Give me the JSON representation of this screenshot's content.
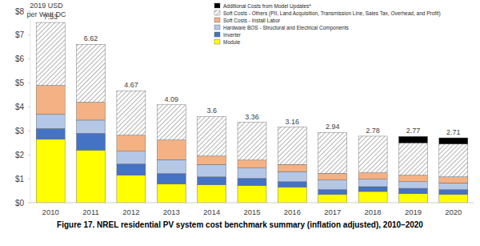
{
  "chart_data": {
    "type": "bar",
    "stacked": true,
    "title": "Figure 17. NREL residential PV system cost benchmark summary (inflation adjusted), 2010–2020",
    "y_label": "2019 USD per Watt DC",
    "categories": [
      "2010",
      "2011",
      "2012",
      "2013",
      "2014",
      "2015",
      "2016",
      "2017",
      "2018",
      "2019",
      "2020"
    ],
    "series": [
      {
        "name": "Module",
        "color": "#ffff00",
        "values": [
          2.65,
          2.2,
          1.15,
          0.78,
          0.75,
          0.72,
          0.65,
          0.35,
          0.47,
          0.38,
          0.35
        ]
      },
      {
        "name": "Inverter",
        "color": "#4472c4",
        "values": [
          0.45,
          0.7,
          0.47,
          0.44,
          0.33,
          0.3,
          0.23,
          0.2,
          0.2,
          0.22,
          0.2
        ]
      },
      {
        "name": "Hardware BOS - Structural and Electrical Components",
        "color": "#b4c7e7",
        "values": [
          0.6,
          0.55,
          0.53,
          0.58,
          0.52,
          0.43,
          0.42,
          0.4,
          0.31,
          0.28,
          0.28
        ]
      },
      {
        "name": "Soft Costs - Install Labor",
        "color": "#f4b183",
        "values": [
          1.2,
          0.75,
          0.67,
          0.82,
          0.35,
          0.33,
          0.3,
          0.28,
          0.27,
          0.27,
          0.25
        ]
      },
      {
        "name": "Soft Costs - Others (PII, Land Acquisition, Transmission Line, Sales Tax, Overhead, and Profit)",
        "color": "#7f7f7f",
        "values": [
          2.63,
          2.42,
          1.85,
          1.47,
          1.65,
          1.58,
          1.56,
          1.71,
          1.53,
          1.35,
          1.37
        ]
      },
      {
        "name": "Additional Costs from Model Updates*",
        "color": "#000000",
        "values": [
          0,
          0,
          0,
          0,
          0,
          0,
          0,
          0,
          0,
          0.27,
          0.26
        ]
      }
    ],
    "totals": [
      7.53,
      6.62,
      4.67,
      4.09,
      3.6,
      3.36,
      3.16,
      2.94,
      2.78,
      2.77,
      2.71
    ],
    "ylim": [
      0,
      8
    ],
    "yticks": [
      {
        "value": 0,
        "label": "$0"
      },
      {
        "value": 1,
        "label": "$1"
      },
      {
        "value": 2,
        "label": "$2"
      },
      {
        "value": 3,
        "label": "$3"
      },
      {
        "value": 4,
        "label": "$4"
      },
      {
        "value": 5,
        "label": "$5"
      },
      {
        "value": 6,
        "label": "$6"
      },
      {
        "value": 7,
        "label": "$7"
      },
      {
        "value": 8,
        "label": "$8"
      }
    ],
    "grid": false,
    "legend": "top-right"
  }
}
